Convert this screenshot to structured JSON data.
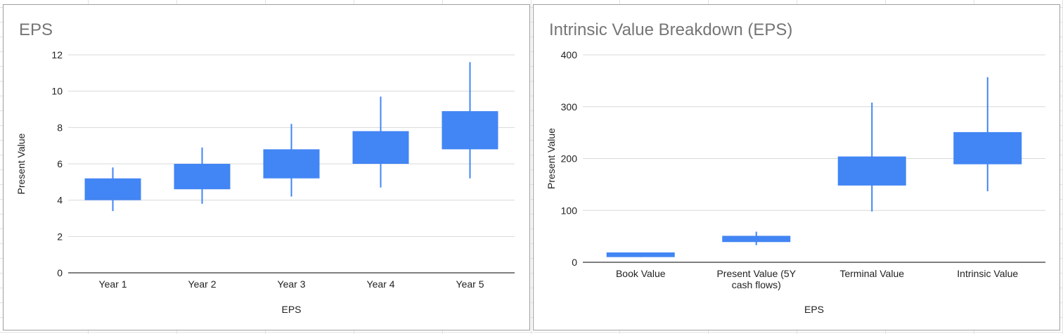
{
  "colors": {
    "box": "#4285f4",
    "grid": "#d9d9d9",
    "axis": "#333333"
  },
  "chart_data": [
    {
      "type": "candlestick",
      "title": "EPS",
      "xlabel": "EPS",
      "ylabel": "Present Value",
      "ylim": [
        0,
        12
      ],
      "yticks": [
        "0",
        "2",
        "4",
        "6",
        "8",
        "10",
        "12"
      ],
      "grid": true,
      "categories": [
        "Year 1",
        "Year 2",
        "Year 3",
        "Year 4",
        "Year 5"
      ],
      "low": [
        3.4,
        3.8,
        4.2,
        4.7,
        5.2
      ],
      "box_low": [
        4.0,
        4.6,
        5.2,
        6.0,
        6.8
      ],
      "box_high": [
        5.2,
        6.0,
        6.8,
        7.8,
        8.9
      ],
      "high": [
        5.8,
        6.9,
        8.2,
        9.7,
        11.6
      ]
    },
    {
      "type": "candlestick",
      "title": "Intrinsic Value Breakdown (EPS)",
      "xlabel": "EPS",
      "ylabel": "Present Value",
      "ylim": [
        0,
        400
      ],
      "yticks": [
        "0",
        "100",
        "200",
        "300",
        "400"
      ],
      "grid": true,
      "categories": [
        "Book Value",
        "Present Value (5Y cash flows)",
        "Terminal Value",
        "Intrinsic Value"
      ],
      "category_lines": [
        [
          "Book Value"
        ],
        [
          "Present Value (5Y",
          "cash flows)"
        ],
        [
          "Terminal Value"
        ],
        [
          "Intrinsic Value"
        ]
      ],
      "low": [
        10,
        33,
        98,
        137
      ],
      "box_low": [
        10,
        39,
        148,
        189
      ],
      "box_high": [
        19,
        51,
        204,
        251
      ],
      "high": [
        19,
        59,
        308,
        357
      ]
    }
  ]
}
